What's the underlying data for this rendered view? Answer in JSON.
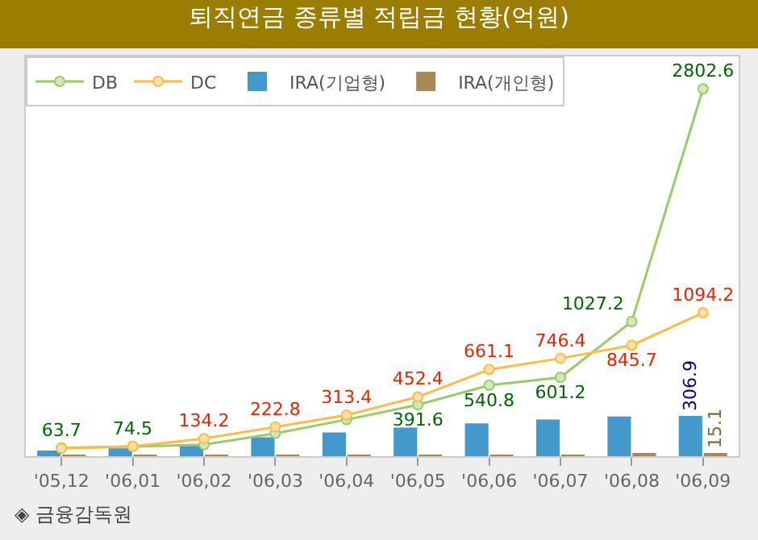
{
  "chart_data": {
    "type": "line",
    "title": "퇴직연금 종류별 적립금 현황(억원)",
    "categories": [
      "'05,12",
      "'06,01",
      "'06,02",
      "'06,03",
      "'06,04",
      "'06,05",
      "'06,06",
      "'06,07",
      "'06,08",
      "'06,09"
    ],
    "series": [
      {
        "name": "DB",
        "color": "#99cc66",
        "values": [
          63.7,
          74.5,
          88,
          174,
          279,
          391.6,
          540.8,
          601.2,
          1027.2,
          2802.6
        ],
        "value_labels": [
          "63.7",
          "74.5",
          null,
          null,
          null,
          "391.6",
          "540.8",
          "601.2",
          "1027.2",
          "2802.6"
        ]
      },
      {
        "name": "DC",
        "color": "#ffbb44",
        "values": [
          60,
          75,
          134.2,
          222.8,
          313.4,
          452.4,
          661.1,
          746.4,
          845.7,
          1094.2
        ],
        "value_labels": [
          null,
          null,
          "134.2",
          "222.8",
          "313.4",
          "452.4",
          "661.1",
          "746.4",
          "845.7",
          "1094.2"
        ]
      },
      {
        "name": "IRA(기업형)",
        "type": "bar",
        "color": "#4499cc",
        "values": [
          43,
          60,
          92,
          144,
          181,
          218,
          251,
          279,
          303,
          306.9
        ],
        "value_labels": [
          null,
          null,
          null,
          null,
          null,
          null,
          null,
          null,
          null,
          "306.9"
        ]
      },
      {
        "name": "IRA(개인형)",
        "type": "bar",
        "color": "#aa8855",
        "values": [
          1,
          2,
          3,
          5,
          7,
          9,
          10,
          12,
          13,
          15.1
        ],
        "value_labels": [
          null,
          null,
          null,
          null,
          null,
          null,
          null,
          null,
          null,
          "15.1"
        ]
      }
    ],
    "ylim": [
      0,
      3050
    ],
    "tick_labels": "x",
    "marker": "circle",
    "legend": "top left",
    "annotations": [
      "◈ 금융감독원"
    ]
  }
}
